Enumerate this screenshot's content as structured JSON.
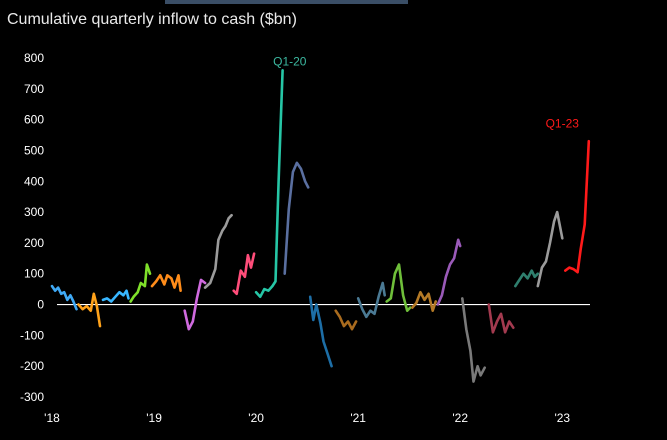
{
  "title": "Cumulative quarterly inflow to cash ($bn)",
  "chart_data": {
    "type": "line",
    "title": "Cumulative quarterly inflow to cash ($bn)",
    "xlabel": "",
    "ylabel": "",
    "x_ticks": [
      "'18",
      "'19",
      "'20",
      "'21",
      "'22",
      "'23"
    ],
    "y_ticks": [
      800,
      700,
      600,
      500,
      400,
      300,
      200,
      100,
      0,
      -100,
      -200,
      -300
    ],
    "ylim": [
      -300,
      800
    ],
    "xlim": [
      2018.0,
      2023.35
    ],
    "grid": false,
    "zero_line": true,
    "annotations": [
      {
        "text": "Q1-20",
        "x": 2020.33,
        "y": 775,
        "color": "#3cb8a0"
      },
      {
        "text": "Q1-23",
        "x": 2023.0,
        "y": 575,
        "color": "#ff1a1a"
      }
    ],
    "series": [
      {
        "color": "#3fa9f5",
        "points": [
          [
            2018.0,
            60
          ],
          [
            2018.03,
            45
          ],
          [
            2018.06,
            55
          ],
          [
            2018.09,
            35
          ],
          [
            2018.12,
            40
          ],
          [
            2018.15,
            15
          ],
          [
            2018.18,
            30
          ],
          [
            2018.21,
            10
          ],
          [
            2018.24,
            -15
          ]
        ]
      },
      {
        "color": "#ffa21a",
        "points": [
          [
            2018.26,
            0
          ],
          [
            2018.3,
            -15
          ],
          [
            2018.34,
            -5
          ],
          [
            2018.38,
            -20
          ],
          [
            2018.41,
            35
          ],
          [
            2018.44,
            -5
          ],
          [
            2018.47,
            -70
          ]
        ]
      },
      {
        "color": "#38b6ff",
        "points": [
          [
            2018.5,
            15
          ],
          [
            2018.54,
            20
          ],
          [
            2018.58,
            10
          ],
          [
            2018.62,
            25
          ],
          [
            2018.66,
            40
          ],
          [
            2018.7,
            30
          ],
          [
            2018.73,
            45
          ],
          [
            2018.75,
            20
          ]
        ]
      },
      {
        "color": "#7fe02a",
        "points": [
          [
            2018.77,
            10
          ],
          [
            2018.8,
            25
          ],
          [
            2018.84,
            40
          ],
          [
            2018.87,
            70
          ],
          [
            2018.91,
            60
          ],
          [
            2018.93,
            130
          ],
          [
            2018.96,
            100
          ]
        ]
      },
      {
        "color": "#ff8c1a",
        "points": [
          [
            2018.98,
            60
          ],
          [
            2019.02,
            75
          ],
          [
            2019.06,
            95
          ],
          [
            2019.1,
            65
          ],
          [
            2019.13,
            95
          ],
          [
            2019.17,
            85
          ],
          [
            2019.2,
            55
          ],
          [
            2019.24,
            95
          ],
          [
            2019.26,
            45
          ]
        ]
      },
      {
        "color": "#d06adf",
        "points": [
          [
            2019.3,
            -20
          ],
          [
            2019.34,
            -80
          ],
          [
            2019.38,
            -55
          ],
          [
            2019.42,
            20
          ],
          [
            2019.46,
            80
          ],
          [
            2019.5,
            70
          ]
        ]
      },
      {
        "color": "#9b9b9b",
        "points": [
          [
            2019.5,
            55
          ],
          [
            2019.55,
            70
          ],
          [
            2019.6,
            115
          ],
          [
            2019.63,
            210
          ],
          [
            2019.67,
            240
          ],
          [
            2019.7,
            255
          ],
          [
            2019.73,
            280
          ],
          [
            2019.76,
            290
          ]
        ]
      },
      {
        "color": "#ff4d7a",
        "points": [
          [
            2019.78,
            45
          ],
          [
            2019.81,
            35
          ],
          [
            2019.85,
            110
          ],
          [
            2019.89,
            90
          ],
          [
            2019.92,
            160
          ],
          [
            2019.95,
            120
          ],
          [
            2019.98,
            165
          ]
        ]
      },
      {
        "color": "#26c6a6",
        "points": [
          [
            2020.0,
            40
          ],
          [
            2020.04,
            25
          ],
          [
            2020.08,
            50
          ],
          [
            2020.12,
            45
          ],
          [
            2020.16,
            60
          ],
          [
            2020.19,
            75
          ],
          [
            2020.22,
            400
          ],
          [
            2020.26,
            760
          ]
        ]
      },
      {
        "color": "#5a6fa0",
        "points": [
          [
            2020.28,
            100
          ],
          [
            2020.32,
            310
          ],
          [
            2020.36,
            430
          ],
          [
            2020.4,
            460
          ],
          [
            2020.44,
            440
          ],
          [
            2020.48,
            400
          ],
          [
            2020.51,
            380
          ]
        ]
      },
      {
        "color": "#1d6ea6",
        "points": [
          [
            2020.53,
            25
          ],
          [
            2020.56,
            -50
          ],
          [
            2020.59,
            0
          ],
          [
            2020.63,
            -60
          ],
          [
            2020.66,
            -120
          ],
          [
            2020.7,
            -160
          ],
          [
            2020.74,
            -200
          ]
        ]
      },
      {
        "color": "#a96b1e",
        "points": [
          [
            2020.78,
            -20
          ],
          [
            2020.82,
            -40
          ],
          [
            2020.86,
            -70
          ],
          [
            2020.9,
            -55
          ],
          [
            2020.94,
            -80
          ],
          [
            2020.98,
            -55
          ]
        ]
      },
      {
        "color": "#4b7a94",
        "points": [
          [
            2021.0,
            20
          ],
          [
            2021.04,
            -15
          ],
          [
            2021.08,
            -40
          ],
          [
            2021.12,
            -20
          ],
          [
            2021.16,
            -30
          ],
          [
            2021.2,
            25
          ],
          [
            2021.24,
            70
          ],
          [
            2021.26,
            30
          ]
        ]
      },
      {
        "color": "#6fbf3a",
        "points": [
          [
            2021.28,
            10
          ],
          [
            2021.32,
            20
          ],
          [
            2021.36,
            100
          ],
          [
            2021.4,
            130
          ],
          [
            2021.44,
            30
          ],
          [
            2021.48,
            -20
          ],
          [
            2021.51,
            -10
          ]
        ]
      },
      {
        "color": "#b47a26",
        "points": [
          [
            2021.53,
            -10
          ],
          [
            2021.57,
            5
          ],
          [
            2021.61,
            40
          ],
          [
            2021.65,
            15
          ],
          [
            2021.69,
            35
          ],
          [
            2021.73,
            -20
          ],
          [
            2021.76,
            10
          ]
        ]
      },
      {
        "color": "#9a5ab8",
        "points": [
          [
            2021.78,
            0
          ],
          [
            2021.82,
            30
          ],
          [
            2021.86,
            90
          ],
          [
            2021.9,
            130
          ],
          [
            2021.94,
            150
          ],
          [
            2021.98,
            210
          ],
          [
            2022.0,
            190
          ]
        ]
      },
      {
        "color": "#7a7a7a",
        "points": [
          [
            2022.02,
            20
          ],
          [
            2022.06,
            -80
          ],
          [
            2022.1,
            -150
          ],
          [
            2022.13,
            -250
          ],
          [
            2022.17,
            -200
          ],
          [
            2022.2,
            -230
          ],
          [
            2022.24,
            -205
          ]
        ]
      },
      {
        "color": "#a33a4f",
        "points": [
          [
            2022.28,
            0
          ],
          [
            2022.32,
            -90
          ],
          [
            2022.36,
            -55
          ],
          [
            2022.4,
            -30
          ],
          [
            2022.44,
            -90
          ],
          [
            2022.48,
            -55
          ],
          [
            2022.52,
            -75
          ]
        ]
      },
      {
        "color": "#2f7f6e",
        "points": [
          [
            2022.54,
            60
          ],
          [
            2022.58,
            80
          ],
          [
            2022.62,
            100
          ],
          [
            2022.66,
            85
          ],
          [
            2022.7,
            110
          ],
          [
            2022.73,
            90
          ],
          [
            2022.76,
            100
          ]
        ]
      },
      {
        "color": "#9b9b9b",
        "points": [
          [
            2022.76,
            60
          ],
          [
            2022.8,
            120
          ],
          [
            2022.84,
            140
          ],
          [
            2022.88,
            200
          ],
          [
            2022.92,
            270
          ],
          [
            2022.95,
            300
          ],
          [
            2022.98,
            250
          ],
          [
            2023.0,
            215
          ]
        ]
      },
      {
        "color": "#ff1a1a",
        "points": [
          [
            2023.03,
            110
          ],
          [
            2023.07,
            120
          ],
          [
            2023.11,
            115
          ],
          [
            2023.15,
            105
          ],
          [
            2023.18,
            180
          ],
          [
            2023.22,
            260
          ],
          [
            2023.26,
            530
          ]
        ]
      }
    ]
  }
}
